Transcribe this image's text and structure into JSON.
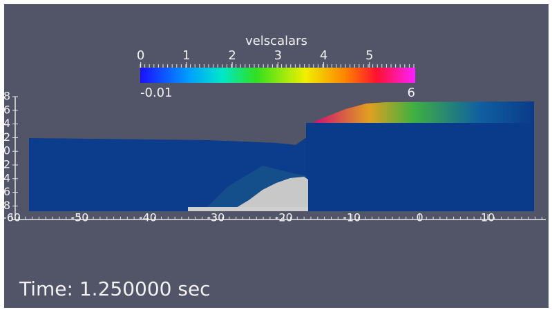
{
  "colorbar": {
    "title": "velscalars",
    "ticks": [
      0,
      1,
      2,
      3,
      4,
      5
    ],
    "range": [
      -0.01,
      6
    ]
  },
  "axis": {
    "x_ticks": [
      -60,
      -50,
      -40,
      -30,
      -20,
      -10,
      0,
      10
    ],
    "y_ticks": [
      "8",
      "6",
      "4",
      "2",
      "0",
      "2",
      "4",
      "6",
      "8"
    ]
  },
  "time_label": "Time: 1.250000 sec"
}
